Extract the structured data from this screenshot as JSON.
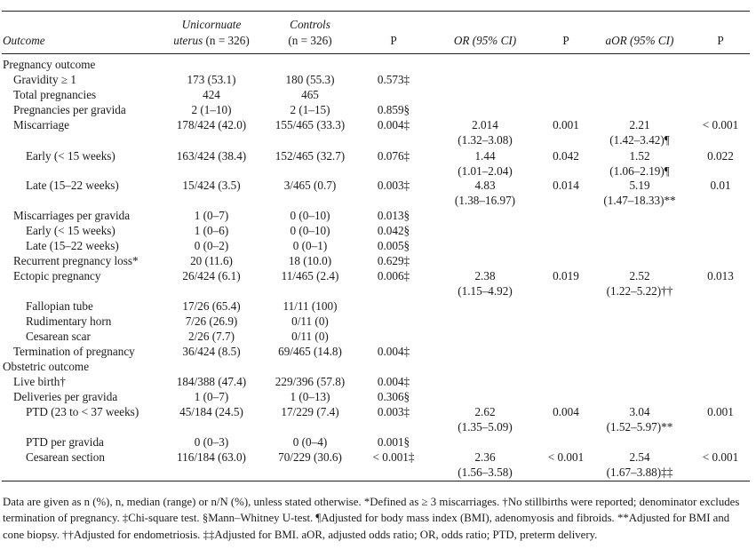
{
  "headers": {
    "outcome": "Outcome",
    "uni_line1": "Unicornuate",
    "uni_line2_a": "uterus",
    "uni_line2_b": "(n = 326)",
    "ctrl_line1": "Controls",
    "ctrl_line2": "(n = 326)",
    "p1": "P",
    "or": "OR (95% CI)",
    "p2": "P",
    "aor": "aOR (95% CI)",
    "p3": "P"
  },
  "rows": [
    {
      "label": "Pregnancy outcome",
      "indent": 0
    },
    {
      "label": "Gravidity ≥ 1",
      "indent": 1,
      "uni": "173 (53.1)",
      "ctrl": "180 (55.3)",
      "p": "0.573‡"
    },
    {
      "label": "Total pregnancies",
      "indent": 1,
      "uni": "424",
      "ctrl": "465"
    },
    {
      "label": "Pregnancies per gravida",
      "indent": 1,
      "uni": "2 (1–10)",
      "ctrl": "2 (1–15)",
      "p": "0.859§"
    },
    {
      "label": "Miscarriage",
      "indent": 1,
      "uni": "178/424 (42.0)",
      "ctrl": "155/465 (33.3)",
      "p": "0.004‡",
      "or1": "2.014",
      "or2": "(1.32–3.08)",
      "p2": "0.001",
      "aor1": "2.21",
      "aor2": "(1.42–3.42)¶",
      "p3": "< 0.001"
    },
    {
      "label": "Early (< 15 weeks)",
      "indent": 2,
      "uni": "163/424 (38.4)",
      "ctrl": "152/465 (32.7)",
      "p": "0.076‡",
      "or1": "1.44",
      "or2": "(1.01–2.04)",
      "p2": "0.042",
      "aor1": "1.52",
      "aor2": "(1.06–2.19)¶",
      "p3": "0.022"
    },
    {
      "label": "Late (15–22 weeks)",
      "indent": 2,
      "uni": "15/424 (3.5)",
      "ctrl": "3/465 (0.7)",
      "p": "0.003‡",
      "or1": "4.83",
      "or2": "(1.38–16.97)",
      "p2": "0.014",
      "aor1": "5.19",
      "aor2": "(1.47–18.33)**",
      "p3": "0.01"
    },
    {
      "label": "Miscarriages per gravida",
      "indent": 1,
      "uni": "1 (0–7)",
      "ctrl": "0 (0–10)",
      "p": "0.013§"
    },
    {
      "label": "Early (< 15 weeks)",
      "indent": 2,
      "uni": "1 (0–6)",
      "ctrl": "0 (0–10)",
      "p": "0.042§"
    },
    {
      "label": "Late (15–22 weeks)",
      "indent": 2,
      "uni": "0 (0–2)",
      "ctrl": "0 (0–1)",
      "p": "0.005§"
    },
    {
      "label": "Recurrent pregnancy loss*",
      "indent": 1,
      "uni": "20 (11.6)",
      "ctrl": "18 (10.0)",
      "p": "0.629‡"
    },
    {
      "label": "Ectopic pregnancy",
      "indent": 1,
      "uni": "26/424 (6.1)",
      "ctrl": "11/465 (2.4)",
      "p": "0.006‡",
      "or1": "2.38",
      "or2": "(1.15–4.92)",
      "p2": "0.019",
      "aor1": "2.52",
      "aor2": "(1.22–5.22)††",
      "p3": "0.013"
    },
    {
      "label": "Fallopian tube",
      "indent": 2,
      "uni": "17/26 (65.4)",
      "ctrl": "11/11 (100)"
    },
    {
      "label": "Rudimentary horn",
      "indent": 2,
      "uni": "7/26 (26.9)",
      "ctrl": "0/11 (0)"
    },
    {
      "label": "Cesarean scar",
      "indent": 2,
      "uni": "2/26 (7.7)",
      "ctrl": "0/11 (0)"
    },
    {
      "label": "Termination of pregnancy",
      "indent": 1,
      "uni": "36/424 (8.5)",
      "ctrl": "69/465 (14.8)",
      "p": "0.004‡"
    },
    {
      "label": "Obstetric outcome",
      "indent": 0
    },
    {
      "label": "Live birth†",
      "indent": 1,
      "uni": "184/388 (47.4)",
      "ctrl": "229/396 (57.8)",
      "p": "0.004‡"
    },
    {
      "label": "Deliveries per gravida",
      "indent": 1,
      "uni": "1 (0–7)",
      "ctrl": "1 (0–13)",
      "p": "0.306§"
    },
    {
      "label": "PTD (23 to < 37 weeks)",
      "indent": 2,
      "uni": "45/184 (24.5)",
      "ctrl": "17/229 (7.4)",
      "p": "0.003‡",
      "or1": "2.62",
      "or2": "(1.35–5.09)",
      "p2": "0.004",
      "aor1": "3.04",
      "aor2": "(1.52–5.97)**",
      "p3": "0.001"
    },
    {
      "label": "PTD per gravida",
      "indent": 2,
      "uni": "0 (0–3)",
      "ctrl": "0 (0–4)",
      "p": "0.001§"
    },
    {
      "label": "Cesarean section",
      "indent": 2,
      "uni": "116/184 (63.0)",
      "ctrl": "70/229 (30.6)",
      "p": "< 0.001‡",
      "or1": "2.36",
      "or2": "(1.56–3.58)",
      "p2": "< 0.001",
      "aor1": "2.54",
      "aor2": "(1.67–3.88)‡‡",
      "p3": "< 0.001"
    }
  ],
  "footnote": "Data are given as n (%), n, median (range) or n/N (%), unless stated otherwise. *Defined as ≥ 3 miscarriages. †No stillbirths were reported; denominator excludes termination of pregnancy. ‡Chi-square test. §Mann–Whitney U-test. ¶Adjusted for body mass index (BMI), adenomyosis and fibroids. **Adjusted for BMI and cone biopsy. ††Adjusted for endometriosis. ‡‡Adjusted for BMI. aOR, adjusted odds ratio; OR, odds ratio; PTD, preterm delivery."
}
